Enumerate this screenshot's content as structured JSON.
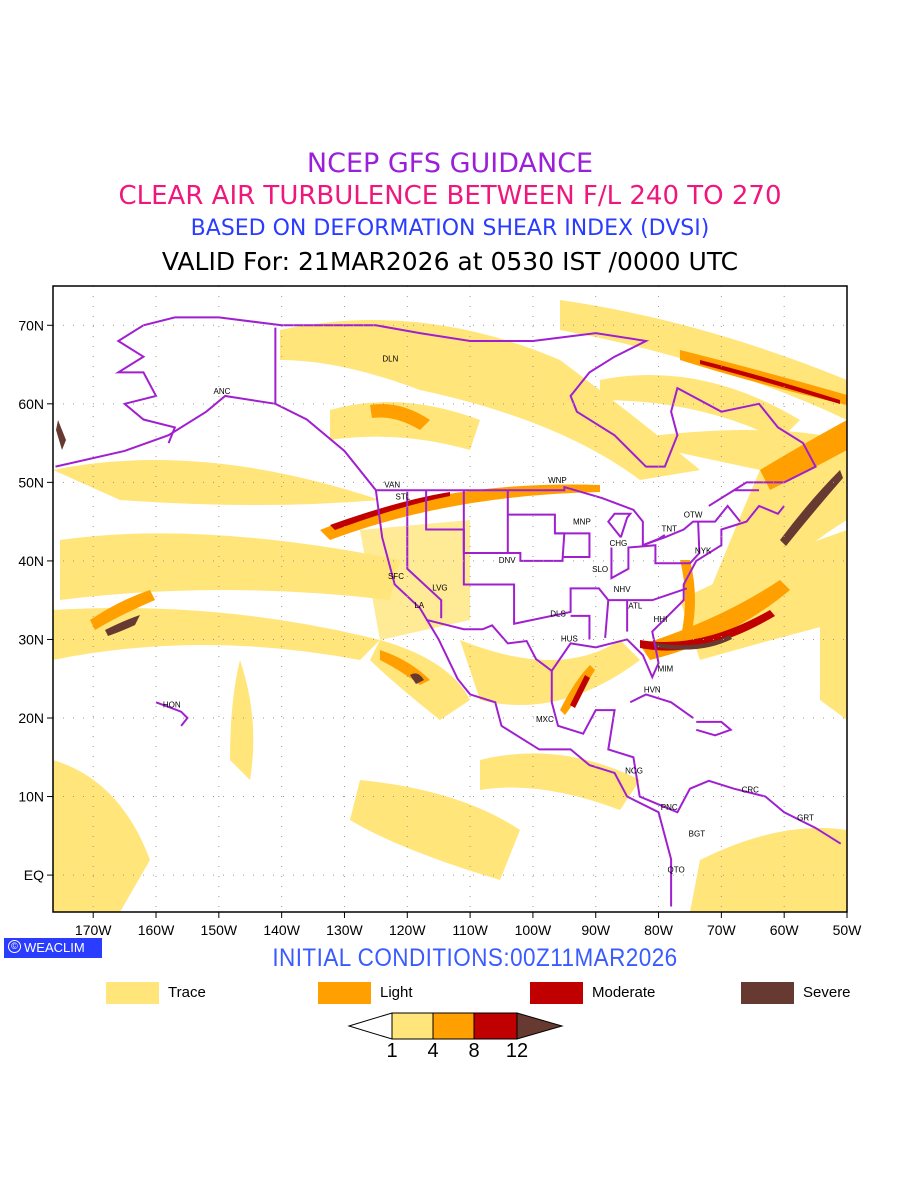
{
  "header": {
    "title": "NCEP GFS GUIDANCE",
    "subtitle": "CLEAR AIR TURBULENCE BETWEEN F/L 240 TO 270",
    "method": "BASED ON DEFORMATION SHEAR INDEX (DVSI)",
    "valid": "VALID For: 21MAR2026 at 0530 IST /0000 UTC"
  },
  "map": {
    "lon_range": [
      -176.4,
      -50
    ],
    "lat_range": [
      -4.7,
      75
    ],
    "lon_ticks": [
      "170W",
      "160W",
      "150W",
      "140W",
      "130W",
      "120W",
      "110W",
      "100W",
      "90W",
      "80W",
      "70W",
      "60W",
      "50W"
    ],
    "lat_ticks": [
      "70N",
      "60N",
      "50N",
      "40N",
      "30N",
      "20N",
      "10N",
      "EQ"
    ],
    "cities": [
      {
        "label": "DLN",
        "lon": -122.7,
        "lat": 65.8
      },
      {
        "label": "ANC",
        "lon": -149.5,
        "lat": 61.6
      },
      {
        "label": "VAN",
        "lon": -122.4,
        "lat": 49.7
      },
      {
        "label": "STL",
        "lon": -120.7,
        "lat": 48.2
      },
      {
        "label": "WNP",
        "lon": -96.1,
        "lat": 50.3
      },
      {
        "label": "MNP",
        "lon": -92.2,
        "lat": 45.0
      },
      {
        "label": "OTW",
        "lon": -74.5,
        "lat": 45.9
      },
      {
        "label": "TNT",
        "lon": -78.3,
        "lat": 44.1
      },
      {
        "label": "CHG",
        "lon": -86.4,
        "lat": 42.3
      },
      {
        "label": "NYK",
        "lon": -72.9,
        "lat": 41.3
      },
      {
        "label": "DNV",
        "lon": -104.1,
        "lat": 40.1
      },
      {
        "label": "SFC",
        "lon": -121.8,
        "lat": 38.1
      },
      {
        "label": "SLO",
        "lon": -89.3,
        "lat": 39.0
      },
      {
        "label": "LVG",
        "lon": -114.8,
        "lat": 36.6
      },
      {
        "label": "NHV",
        "lon": -85.8,
        "lat": 36.4
      },
      {
        "label": "LA",
        "lon": -118.1,
        "lat": 34.4
      },
      {
        "label": "ATL",
        "lon": -83.7,
        "lat": 34.3
      },
      {
        "label": "DLS",
        "lon": -96.0,
        "lat": 33.3
      },
      {
        "label": "HHI",
        "lon": -79.7,
        "lat": 32.6
      },
      {
        "label": "HUS",
        "lon": -94.2,
        "lat": 30.1
      },
      {
        "label": "MIM",
        "lon": -78.9,
        "lat": 26.3
      },
      {
        "label": "HON",
        "lon": -157.5,
        "lat": 21.7
      },
      {
        "label": "HVN",
        "lon": -81.0,
        "lat": 23.6
      },
      {
        "label": "MXC",
        "lon": -98.1,
        "lat": 19.9
      },
      {
        "label": "NCG",
        "lon": -83.9,
        "lat": 13.3
      },
      {
        "label": "CRC",
        "lon": -65.4,
        "lat": 10.9
      },
      {
        "label": "PNC",
        "lon": -78.3,
        "lat": 8.7
      },
      {
        "label": "GRT",
        "lon": -56.6,
        "lat": 7.3
      },
      {
        "label": "BGT",
        "lon": -73.9,
        "lat": 5.3
      },
      {
        "label": "QTO",
        "lon": -77.2,
        "lat": 0.7
      }
    ],
    "boundary_color": "#a020d0"
  },
  "footer": {
    "brand": "WEACLIM",
    "brand_symbol": "©",
    "initial_conditions": "INITIAL CONDITIONS:00Z11MAR2026"
  },
  "legend": {
    "items": [
      {
        "label": "Trace",
        "color": "#ffe57a"
      },
      {
        "label": "Light",
        "color": "#ffa000"
      },
      {
        "label": "Moderate",
        "color": "#c00000"
      },
      {
        "label": "Severe",
        "color": "#663a30"
      }
    ],
    "colorbar_labels": [
      "1",
      "4",
      "8",
      "12"
    ]
  }
}
